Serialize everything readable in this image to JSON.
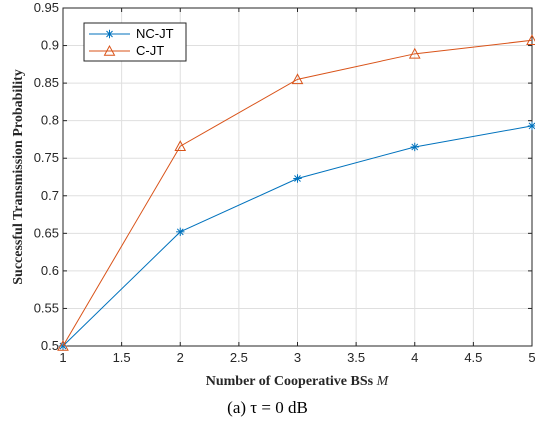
{
  "chart_data": {
    "type": "line",
    "xlabel": "Number of Cooperative BSs M",
    "ylabel": "Successful Transmission Probability",
    "xlim": [
      1,
      5
    ],
    "ylim": [
      0.5,
      0.95
    ],
    "xticks": [
      "1",
      "1.5",
      "2",
      "2.5",
      "3",
      "3.5",
      "4",
      "4.5",
      "5"
    ],
    "yticks": [
      "0.5",
      "0.55",
      "0.6",
      "0.65",
      "0.7",
      "0.75",
      "0.8",
      "0.85",
      "0.9",
      "0.95"
    ],
    "grid": true,
    "legend_position": "top-left",
    "x": [
      1,
      2,
      3,
      4,
      5
    ],
    "series": [
      {
        "name": "NC-JT",
        "values": [
          0.5,
          0.652,
          0.723,
          0.765,
          0.793
        ],
        "color": "#0072BD",
        "marker": "asterisk"
      },
      {
        "name": "C-JT",
        "values": [
          0.5,
          0.766,
          0.855,
          0.889,
          0.907
        ],
        "color": "#D95319",
        "marker": "triangle"
      }
    ]
  },
  "caption": "(a)  τ = 0 dB"
}
